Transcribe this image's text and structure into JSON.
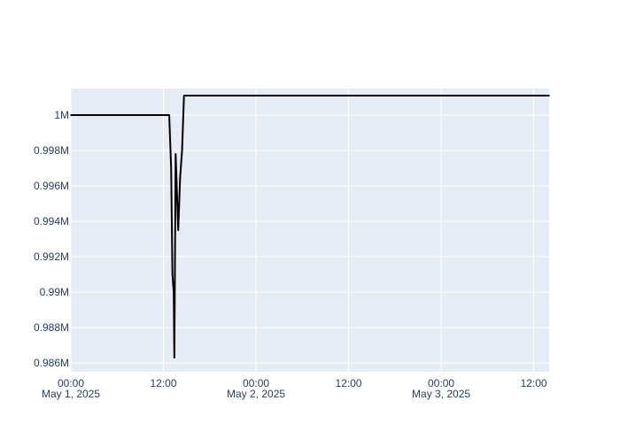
{
  "chart_data": {
    "type": "line",
    "title": "",
    "xlabel": "",
    "ylabel": "",
    "colors": {
      "plot_bg": "#e5ecf6",
      "grid": "#ffffff",
      "line": "#000000",
      "text": "#2a3f5f",
      "paper_bg": "#ffffff"
    },
    "xlim": [
      "2025-05-01 00:00",
      "2025-05-03 14:00"
    ],
    "ylim": [
      985500,
      1001500
    ],
    "grid": true,
    "x_ticks": [
      {
        "t": "2025-05-01 00:00",
        "label": "00:00",
        "sublabel": "May 1, 2025"
      },
      {
        "t": "2025-05-01 12:00",
        "label": "12:00",
        "sublabel": ""
      },
      {
        "t": "2025-05-02 00:00",
        "label": "00:00",
        "sublabel": "May 2, 2025"
      },
      {
        "t": "2025-05-02 12:00",
        "label": "12:00",
        "sublabel": ""
      },
      {
        "t": "2025-05-03 00:00",
        "label": "00:00",
        "sublabel": "May 3, 2025"
      },
      {
        "t": "2025-05-03 12:00",
        "label": "12:00",
        "sublabel": ""
      }
    ],
    "y_ticks": [
      {
        "v": 986000,
        "label": "0.986M"
      },
      {
        "v": 988000,
        "label": "0.988M"
      },
      {
        "v": 990000,
        "label": "0.99M"
      },
      {
        "v": 992000,
        "label": "0.992M"
      },
      {
        "v": 994000,
        "label": "0.994M"
      },
      {
        "v": 996000,
        "label": "0.996M"
      },
      {
        "v": 998000,
        "label": "0.998M"
      },
      {
        "v": 1000000,
        "label": "1M"
      }
    ],
    "series": [
      {
        "points": [
          [
            "2025-05-01 00:00",
            1000000
          ],
          [
            "2025-05-01 12:45",
            1000000
          ],
          [
            "2025-05-01 13:00",
            997000
          ],
          [
            "2025-05-01 13:10",
            991000
          ],
          [
            "2025-05-01 13:20",
            990000
          ],
          [
            "2025-05-01 13:25",
            986300
          ],
          [
            "2025-05-01 13:35",
            997800
          ],
          [
            "2025-05-01 13:55",
            993500
          ],
          [
            "2025-05-01 14:10",
            996500
          ],
          [
            "2025-05-01 14:25",
            998000
          ],
          [
            "2025-05-01 14:40",
            1001100
          ],
          [
            "2025-05-03 14:00",
            1001100
          ]
        ]
      }
    ]
  }
}
